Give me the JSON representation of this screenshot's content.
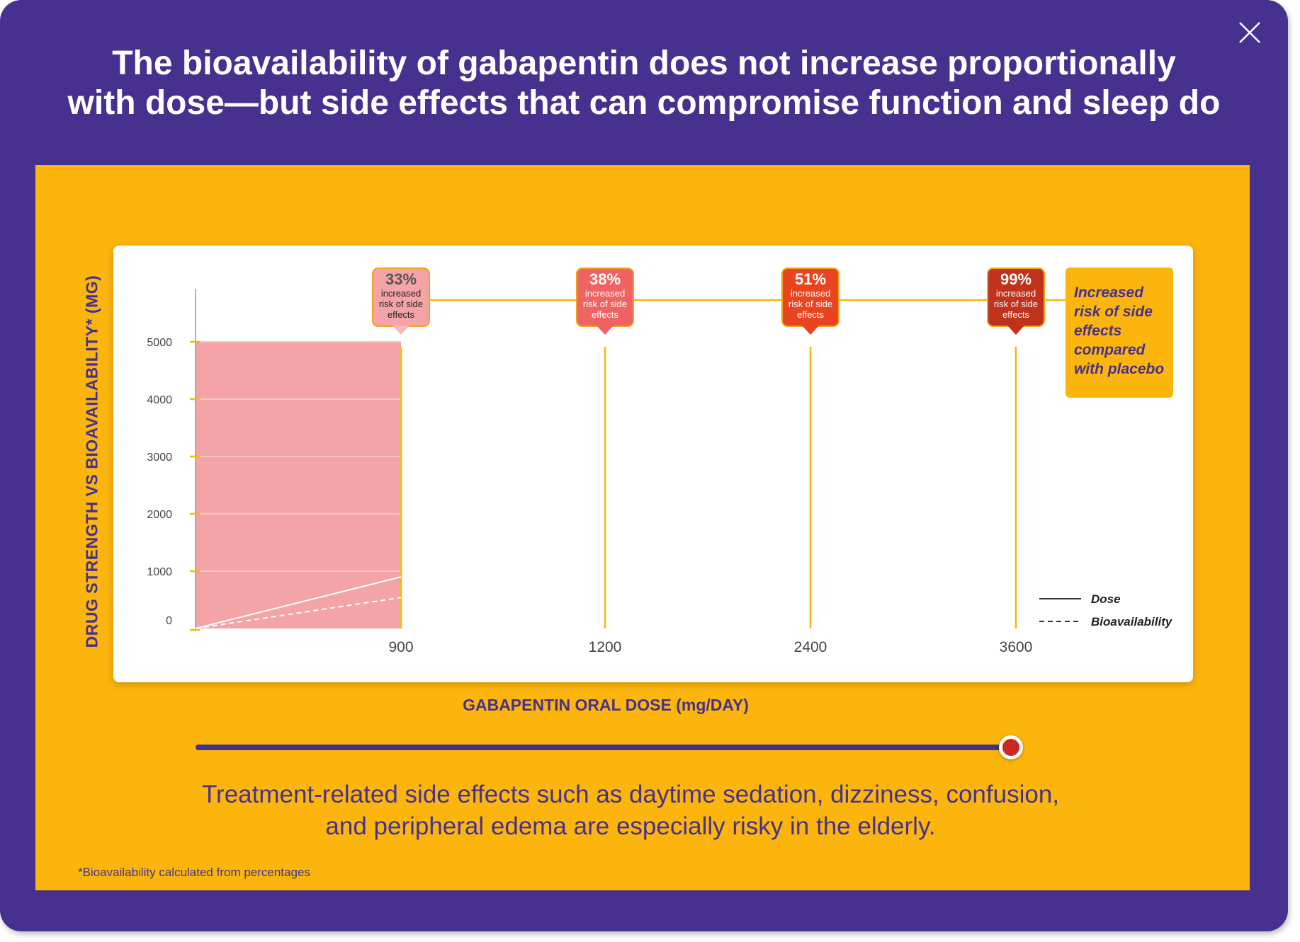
{
  "headline": {
    "line1": "The bioavailability of gabapentin does not increase proportionally",
    "line2": "with dose—but side effects that can compromise function and sleep do"
  },
  "close_icon": "close-x-icon",
  "chart_data": {
    "type": "line",
    "title": "",
    "xlabel": "GABAPENTIN ORAL DOSE (mg/DAY)",
    "ylabel": "DRUG STRENGTH VS BIOAVAILABILITY* (MG)",
    "y_ticks": [
      0,
      1000,
      2000,
      3000,
      4000,
      5000
    ],
    "ylim": [
      0,
      5000
    ],
    "x_categories": [
      "900",
      "1200",
      "2400",
      "3600"
    ],
    "selected_dose": "900",
    "series": [
      {
        "name": "Dose",
        "style": "solid",
        "points": [
          {
            "x": 0,
            "y": 0
          },
          {
            "x": 900,
            "y": 900
          }
        ]
      },
      {
        "name": "Bioavailability",
        "style": "dashed",
        "points": [
          {
            "x": 0,
            "y": 0
          },
          {
            "x": 900,
            "y": 540
          }
        ]
      }
    ],
    "side_effect_risk": [
      {
        "dose": "900",
        "percent": "33%",
        "text": "increased risk of side effects",
        "color": "#f4a3a6",
        "tail_color": "#f5b9bb"
      },
      {
        "dose": "1200",
        "percent": "38%",
        "text": "increased risk of side effects",
        "color": "#ef6363",
        "tail_color": "#ef6363"
      },
      {
        "dose": "2400",
        "percent": "51%",
        "text": "increased risk of side effects",
        "color": "#e8441f",
        "tail_color": "#e8441f"
      },
      {
        "dose": "3600",
        "percent": "99%",
        "text": "increased risk of side effects",
        "color": "#c0321c",
        "tail_color": "#c0321c"
      }
    ],
    "legend": {
      "position": "bottom-right",
      "items": [
        "Dose",
        "Bioavailability"
      ]
    },
    "risk_legend": "Increased risk of side effects compared with placebo",
    "highlight_color": "#f4a3a6",
    "accent_color": "#fbb50d",
    "grid": true
  },
  "slider": {
    "value_fraction": 1.0
  },
  "caption": {
    "line1": "Treatment-related side effects such as daytime sedation, dizziness, confusion,",
    "line2": "and peripheral edema are especially risky in the elderly."
  },
  "footnote": "*Bioavailability calculated from percentages",
  "colors": {
    "brand_purple": "#46318f",
    "panel_yellow": "#fbb50d",
    "thumb_red": "#c8281d"
  }
}
